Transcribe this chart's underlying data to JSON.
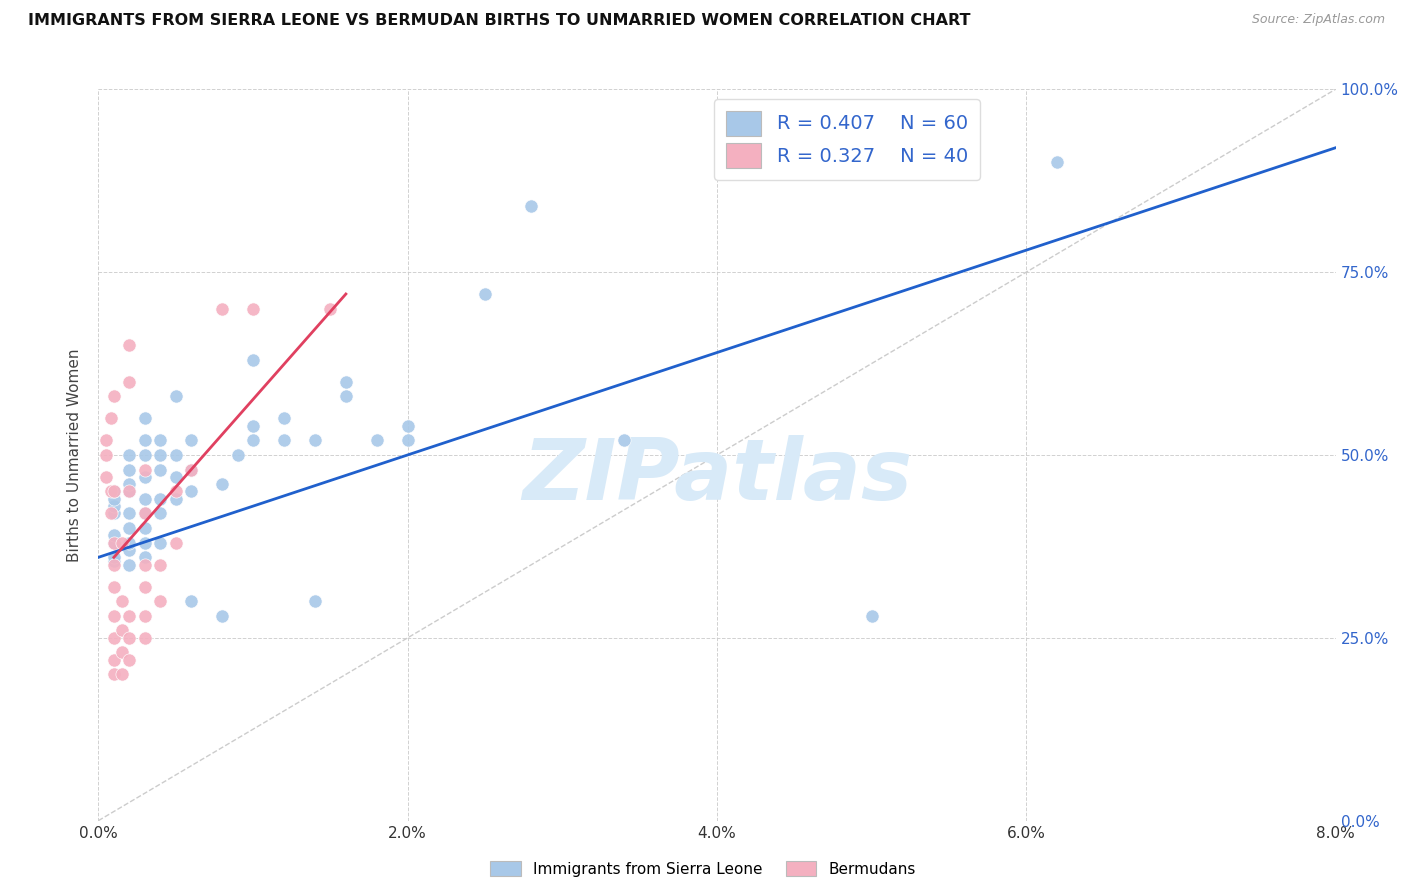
{
  "title": "IMMIGRANTS FROM SIERRA LEONE VS BERMUDAN BIRTHS TO UNMARRIED WOMEN CORRELATION CHART",
  "source": "Source: ZipAtlas.com",
  "xlabel_ticks": [
    "0.0%",
    "2.0%",
    "4.0%",
    "6.0%",
    "8.0%"
  ],
  "xlabel_tick_vals": [
    0.0,
    0.02,
    0.04,
    0.06,
    0.08
  ],
  "ylabel_ticks": [
    "0.0%",
    "25.0%",
    "50.0%",
    "75.0%",
    "100.0%"
  ],
  "ylabel_tick_vals": [
    0.0,
    0.25,
    0.5,
    0.75,
    1.0
  ],
  "ylabel": "Births to Unmarried Women",
  "legend_blue_label": "Immigrants from Sierra Leone",
  "legend_pink_label": "Bermudans",
  "legend_r_blue": "R = 0.407",
  "legend_n_blue": "N = 60",
  "legend_r_pink": "R = 0.327",
  "legend_n_pink": "N = 40",
  "blue_color": "#a8c8e8",
  "pink_color": "#f4b0c0",
  "line_blue": "#2060cc",
  "line_pink": "#e04060",
  "diagonal_color": "#cccccc",
  "watermark_color": "#d8eaf8",
  "blue_scatter": [
    [
      0.001,
      0.355
    ],
    [
      0.001,
      0.36
    ],
    [
      0.001,
      0.38
    ],
    [
      0.001,
      0.39
    ],
    [
      0.001,
      0.42
    ],
    [
      0.001,
      0.43
    ],
    [
      0.001,
      0.44
    ],
    [
      0.001,
      0.45
    ],
    [
      0.002,
      0.35
    ],
    [
      0.002,
      0.37
    ],
    [
      0.002,
      0.38
    ],
    [
      0.002,
      0.4
    ],
    [
      0.002,
      0.42
    ],
    [
      0.002,
      0.45
    ],
    [
      0.002,
      0.46
    ],
    [
      0.002,
      0.48
    ],
    [
      0.002,
      0.5
    ],
    [
      0.003,
      0.36
    ],
    [
      0.003,
      0.38
    ],
    [
      0.003,
      0.4
    ],
    [
      0.003,
      0.42
    ],
    [
      0.003,
      0.44
    ],
    [
      0.003,
      0.47
    ],
    [
      0.003,
      0.5
    ],
    [
      0.003,
      0.52
    ],
    [
      0.003,
      0.55
    ],
    [
      0.004,
      0.38
    ],
    [
      0.004,
      0.42
    ],
    [
      0.004,
      0.44
    ],
    [
      0.004,
      0.48
    ],
    [
      0.004,
      0.5
    ],
    [
      0.004,
      0.52
    ],
    [
      0.005,
      0.44
    ],
    [
      0.005,
      0.47
    ],
    [
      0.005,
      0.5
    ],
    [
      0.005,
      0.58
    ],
    [
      0.006,
      0.3
    ],
    [
      0.006,
      0.45
    ],
    [
      0.006,
      0.48
    ],
    [
      0.006,
      0.52
    ],
    [
      0.008,
      0.28
    ],
    [
      0.008,
      0.46
    ],
    [
      0.009,
      0.5
    ],
    [
      0.01,
      0.52
    ],
    [
      0.01,
      0.54
    ],
    [
      0.01,
      0.63
    ],
    [
      0.012,
      0.52
    ],
    [
      0.012,
      0.55
    ],
    [
      0.014,
      0.3
    ],
    [
      0.014,
      0.52
    ],
    [
      0.016,
      0.58
    ],
    [
      0.016,
      0.6
    ],
    [
      0.018,
      0.52
    ],
    [
      0.02,
      0.52
    ],
    [
      0.02,
      0.54
    ],
    [
      0.025,
      0.72
    ],
    [
      0.028,
      0.84
    ],
    [
      0.034,
      0.52
    ],
    [
      0.05,
      0.28
    ],
    [
      0.062,
      0.9
    ]
  ],
  "pink_scatter": [
    [
      0.0005,
      0.47
    ],
    [
      0.0005,
      0.5
    ],
    [
      0.0005,
      0.52
    ],
    [
      0.0008,
      0.42
    ],
    [
      0.0008,
      0.45
    ],
    [
      0.0008,
      0.55
    ],
    [
      0.001,
      0.2
    ],
    [
      0.001,
      0.22
    ],
    [
      0.001,
      0.25
    ],
    [
      0.001,
      0.28
    ],
    [
      0.001,
      0.32
    ],
    [
      0.001,
      0.35
    ],
    [
      0.001,
      0.38
    ],
    [
      0.001,
      0.45
    ],
    [
      0.001,
      0.58
    ],
    [
      0.0015,
      0.2
    ],
    [
      0.0015,
      0.23
    ],
    [
      0.0015,
      0.26
    ],
    [
      0.0015,
      0.3
    ],
    [
      0.0015,
      0.38
    ],
    [
      0.002,
      0.22
    ],
    [
      0.002,
      0.25
    ],
    [
      0.002,
      0.28
    ],
    [
      0.002,
      0.45
    ],
    [
      0.002,
      0.6
    ],
    [
      0.002,
      0.65
    ],
    [
      0.003,
      0.25
    ],
    [
      0.003,
      0.28
    ],
    [
      0.003,
      0.32
    ],
    [
      0.003,
      0.35
    ],
    [
      0.003,
      0.42
    ],
    [
      0.003,
      0.48
    ],
    [
      0.004,
      0.3
    ],
    [
      0.004,
      0.35
    ],
    [
      0.005,
      0.38
    ],
    [
      0.005,
      0.45
    ],
    [
      0.006,
      0.48
    ],
    [
      0.008,
      0.7
    ],
    [
      0.01,
      0.7
    ],
    [
      0.015,
      0.7
    ]
  ],
  "blue_line_x": [
    0.0,
    0.08
  ],
  "blue_line_y": [
    0.36,
    0.92
  ],
  "pink_line_x": [
    0.001,
    0.016
  ],
  "pink_line_y": [
    0.36,
    0.72
  ],
  "diag_line_x": [
    0.0,
    0.08
  ],
  "diag_line_y": [
    0.0,
    1.0
  ],
  "xmin": 0.0,
  "xmax": 0.08,
  "ymin": 0.0,
  "ymax": 1.0
}
